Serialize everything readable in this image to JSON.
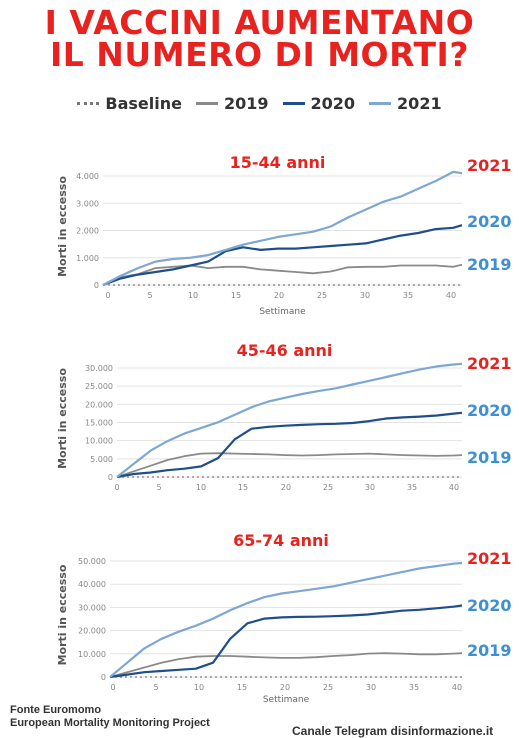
{
  "title": {
    "line1": "I VACCINI AUMENTANO",
    "line2": "IL NUMERO DI MORTI?"
  },
  "legend": [
    {
      "label": "Baseline",
      "style": "dotted",
      "color": "#777777"
    },
    {
      "label": "2019",
      "style": "solid",
      "color": "#8a8a8a"
    },
    {
      "label": "2020",
      "style": "solid",
      "color": "#1f4e8c"
    },
    {
      "label": "2021",
      "style": "solid",
      "color": "#7ea7d3"
    }
  ],
  "colors": {
    "title": "#e8231f",
    "2019": "#8a8a8a",
    "2020": "#1f4e8c",
    "2021": "#7ea7d3",
    "label2021": "#e8231f",
    "label2020": "#3d8fd6",
    "label2019": "#3d8fd6"
  },
  "chart_data": [
    {
      "type": "line",
      "title": "15-44 anni",
      "xlabel": "Settimane",
      "ylabel": "Morti in eccesso",
      "xticks": [
        0,
        5,
        10,
        15,
        20,
        25,
        30,
        35,
        40
      ],
      "yticks": [
        "0",
        "1.000",
        "2.000",
        "3.000",
        "4.000"
      ],
      "ylim": [
        0,
        4500
      ],
      "xlim": [
        0,
        41
      ],
      "series": [
        {
          "name": "2019",
          "x": [
            0,
            2,
            4,
            6,
            8,
            10,
            12,
            14,
            16,
            18,
            20,
            22,
            24,
            26,
            28,
            30,
            32,
            34,
            36,
            38,
            40,
            41
          ],
          "values": [
            0,
            300,
            420,
            650,
            700,
            750,
            650,
            700,
            700,
            600,
            550,
            500,
            450,
            520,
            680,
            700,
            700,
            750,
            750,
            750,
            700,
            780
          ]
        },
        {
          "name": "2020",
          "x": [
            0,
            2,
            4,
            6,
            8,
            10,
            12,
            14,
            16,
            18,
            20,
            22,
            24,
            26,
            28,
            30,
            32,
            34,
            36,
            38,
            40,
            41
          ],
          "values": [
            0,
            250,
            400,
            500,
            600,
            750,
            900,
            1300,
            1450,
            1350,
            1400,
            1400,
            1450,
            1500,
            1550,
            1600,
            1750,
            1900,
            2000,
            2150,
            2200,
            2300
          ]
        },
        {
          "name": "2021",
          "x": [
            0,
            2,
            4,
            6,
            8,
            10,
            12,
            14,
            16,
            18,
            20,
            22,
            24,
            26,
            28,
            30,
            32,
            34,
            36,
            38,
            40,
            41
          ],
          "values": [
            0,
            350,
            650,
            900,
            1000,
            1050,
            1150,
            1350,
            1550,
            1700,
            1850,
            1950,
            2050,
            2250,
            2600,
            2900,
            3200,
            3400,
            3700,
            4000,
            4350,
            4300
          ]
        }
      ],
      "baseline": 0,
      "end_labels": [
        "2021",
        "2020",
        "2019"
      ]
    },
    {
      "type": "line",
      "title": "45-46 anni",
      "xlabel": "",
      "ylabel": "Morti in eccesso",
      "xticks": [
        0,
        5,
        10,
        15,
        20,
        25,
        30,
        35,
        40
      ],
      "yticks": [
        "0",
        "5.000",
        "10.000",
        "15.000",
        "20.000",
        "25.000",
        "30.000"
      ],
      "ylim": [
        0,
        31000
      ],
      "xlim": [
        0,
        41
      ],
      "series": [
        {
          "name": "2019",
          "x": [
            0,
            2,
            4,
            6,
            8,
            10,
            12,
            14,
            16,
            18,
            20,
            22,
            24,
            26,
            28,
            30,
            32,
            34,
            36,
            38,
            40,
            41
          ],
          "values": [
            0,
            1500,
            3000,
            4500,
            5500,
            6200,
            6300,
            6200,
            6100,
            6000,
            5800,
            5700,
            5800,
            6000,
            6100,
            6200,
            6000,
            5800,
            5700,
            5600,
            5700,
            5800
          ]
        },
        {
          "name": "2020",
          "x": [
            0,
            2,
            4,
            6,
            8,
            10,
            12,
            14,
            16,
            18,
            20,
            22,
            24,
            26,
            28,
            30,
            32,
            34,
            36,
            38,
            40,
            41
          ],
          "values": [
            0,
            800,
            1200,
            1800,
            2200,
            2800,
            5000,
            10000,
            12800,
            13300,
            13600,
            13800,
            14000,
            14100,
            14300,
            14800,
            15500,
            15800,
            16000,
            16300,
            16800,
            17000
          ]
        },
        {
          "name": "2021",
          "x": [
            0,
            2,
            4,
            6,
            8,
            10,
            12,
            14,
            16,
            18,
            20,
            22,
            24,
            26,
            28,
            30,
            32,
            34,
            36,
            38,
            40,
            41
          ],
          "values": [
            0,
            3500,
            7000,
            9500,
            11500,
            13000,
            14500,
            16500,
            18500,
            20000,
            21000,
            22000,
            22800,
            23500,
            24500,
            25500,
            26500,
            27500,
            28500,
            29300,
            29800,
            30000
          ]
        }
      ],
      "baseline": 0,
      "end_labels": [
        "2021",
        "2020",
        "2019"
      ]
    },
    {
      "type": "line",
      "title": "65-74 anni",
      "xlabel": "Settimane",
      "ylabel": "Morti in eccesso",
      "xticks": [
        0,
        5,
        10,
        15,
        20,
        25,
        30,
        35,
        40
      ],
      "yticks": [
        "0",
        "10.000",
        "20.000",
        "30.000",
        "40.000",
        "50.000"
      ],
      "ylim": [
        0,
        52000
      ],
      "xlim": [
        0,
        41
      ],
      "series": [
        {
          "name": "2019",
          "x": [
            0,
            2,
            4,
            6,
            8,
            10,
            12,
            14,
            16,
            18,
            20,
            22,
            24,
            26,
            28,
            30,
            32,
            34,
            36,
            38,
            40,
            41
          ],
          "values": [
            0,
            2000,
            4000,
            6000,
            7500,
            8500,
            8800,
            8800,
            8500,
            8200,
            8000,
            8000,
            8300,
            8800,
            9200,
            9800,
            10000,
            9800,
            9500,
            9500,
            9800,
            10000
          ]
        },
        {
          "name": "2020",
          "x": [
            0,
            2,
            4,
            6,
            8,
            10,
            12,
            14,
            16,
            18,
            20,
            22,
            24,
            26,
            28,
            30,
            32,
            34,
            36,
            38,
            40,
            41
          ],
          "values": [
            0,
            1000,
            2000,
            2500,
            3000,
            3500,
            6000,
            16000,
            22500,
            24500,
            25000,
            25200,
            25300,
            25500,
            25800,
            26200,
            27000,
            27800,
            28200,
            28800,
            29500,
            30000
          ]
        },
        {
          "name": "2021",
          "x": [
            0,
            2,
            4,
            6,
            8,
            10,
            12,
            14,
            16,
            18,
            20,
            22,
            24,
            26,
            28,
            30,
            32,
            34,
            36,
            38,
            40,
            41
          ],
          "values": [
            0,
            6000,
            12000,
            16000,
            19000,
            21500,
            24500,
            28000,
            31000,
            33500,
            35000,
            36000,
            37000,
            38000,
            39500,
            41000,
            42500,
            44000,
            45500,
            46500,
            47500,
            47800
          ]
        }
      ],
      "baseline": 0,
      "end_labels": [
        "2021",
        "2020",
        "2019"
      ]
    }
  ],
  "footer": {
    "source_line1": "Fonte Euromomo",
    "source_line2": "European Mortality Monitoring Project",
    "channel": "Canale Telegram disinformazione.it"
  }
}
